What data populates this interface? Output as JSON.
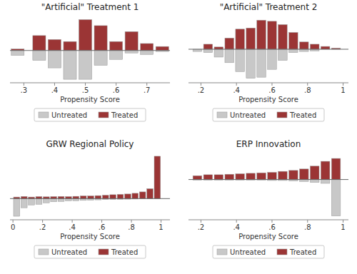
{
  "chart_data": [
    {
      "type": "bar",
      "title": "\"Artificial\" Treatment 1",
      "x_label": "Propensity Score",
      "x": [
        0.28,
        0.35,
        0.4,
        0.45,
        0.5,
        0.55,
        0.6,
        0.65,
        0.7,
        0.75
      ],
      "series": [
        {
          "name": "Untreated",
          "color": "#c8c8c8",
          "values": [
            -0.1,
            -0.2,
            -0.35,
            -0.58,
            -0.58,
            -0.3,
            -0.18,
            -0.05,
            -0.08,
            -0.02
          ]
        },
        {
          "name": "Treated",
          "color": "#9b3535",
          "values": [
            0.03,
            0.3,
            0.22,
            0.18,
            0.62,
            0.5,
            0.18,
            0.38,
            0.14,
            0.08
          ]
        }
      ],
      "xlim": [
        0.255,
        0.775
      ],
      "xticks": [
        {
          "value": 0.3,
          "label": ".3"
        },
        {
          "value": 0.4,
          "label": ".4"
        },
        {
          "value": 0.5,
          "label": ".5"
        },
        {
          "value": 0.6,
          "label": ".6"
        },
        {
          "value": 0.7,
          "label": ".7"
        }
      ],
      "ylim": [
        -0.65,
        0.7
      ],
      "yticks": [],
      "tick_labels": "x",
      "legend": "bottom"
    },
    {
      "type": "bar",
      "title": "\"Artificial\" Treatment 2",
      "x_label": "Propensity Score",
      "x": [
        0.18,
        0.24,
        0.3,
        0.36,
        0.42,
        0.48,
        0.54,
        0.6,
        0.66,
        0.72,
        0.78,
        0.84,
        0.9,
        0.96
      ],
      "series": [
        {
          "name": "Untreated",
          "color": "#c8c8c8",
          "values": [
            -0.04,
            -0.06,
            -0.14,
            -0.24,
            -0.4,
            -0.52,
            -0.5,
            -0.36,
            -0.2,
            -0.06,
            -0.04,
            -0.03,
            0,
            0
          ]
        },
        {
          "name": "Treated",
          "color": "#9b3535",
          "values": [
            0,
            0.09,
            0.04,
            0.2,
            0.36,
            0.38,
            0.52,
            0.5,
            0.44,
            0.3,
            0.13,
            0.09,
            0.05,
            0.02
          ]
        }
      ],
      "xlim": [
        0.13,
        1.03
      ],
      "xticks": [
        {
          "value": 0.2,
          "label": ".2"
        },
        {
          "value": 0.4,
          "label": ".4"
        },
        {
          "value": 0.6,
          "label": ".6"
        },
        {
          "value": 0.8,
          "label": ".8"
        },
        1
      ],
      "ylim": [
        -0.6,
        0.6
      ],
      "yticks": [],
      "tick_labels": "x",
      "legend": "bottom"
    },
    {
      "type": "bar",
      "title": "GRW Regional Policy",
      "x_label": "Propensity Score",
      "x": [
        0.025,
        0.075,
        0.125,
        0.175,
        0.225,
        0.275,
        0.325,
        0.375,
        0.425,
        0.475,
        0.525,
        0.575,
        0.625,
        0.675,
        0.725,
        0.775,
        0.825,
        0.875,
        0.925,
        0.975
      ],
      "series": [
        {
          "name": "Untreated",
          "color": "#c8c8c8",
          "values": [
            -0.25,
            -0.13,
            -0.09,
            -0.08,
            -0.06,
            -0.045,
            -0.04,
            -0.032,
            -0.03,
            -0.025,
            -0.022,
            -0.018,
            -0.014,
            -0.012,
            -0.01,
            -0.008,
            -0.006,
            -0.004,
            -0.003,
            -0.002
          ]
        },
        {
          "name": "Treated",
          "color": "#9b3535",
          "values": [
            0.022,
            0.03,
            0.022,
            0.028,
            0.025,
            0.028,
            0.03,
            0.028,
            0.032,
            0.038,
            0.038,
            0.042,
            0.048,
            0.055,
            0.06,
            0.065,
            0.075,
            0.095,
            0.14,
            0.6
          ]
        }
      ],
      "xlim": [
        -0.02,
        1.06
      ],
      "xticks": [
        0,
        {
          "value": 0.2,
          "label": ".2"
        },
        {
          "value": 0.4,
          "label": ".4"
        },
        {
          "value": 0.6,
          "label": ".6"
        },
        {
          "value": 0.8,
          "label": ".8"
        },
        1
      ],
      "ylim": [
        -0.3,
        0.65
      ],
      "yticks": [],
      "tick_labels": "x",
      "legend": "bottom"
    },
    {
      "type": "bar",
      "title": "ERP Innovation",
      "x_label": "Propensity Score",
      "x": [
        0.18,
        0.24,
        0.3,
        0.36,
        0.42,
        0.48,
        0.54,
        0.6,
        0.66,
        0.72,
        0.78,
        0.84,
        0.9,
        0.96
      ],
      "series": [
        {
          "name": "Untreated",
          "color": "#c8c8c8",
          "values": [
            -0.005,
            -0.005,
            -0.005,
            -0.005,
            -0.005,
            -0.005,
            -0.005,
            -0.01,
            -0.01,
            -0.015,
            -0.02,
            -0.03,
            -0.04,
            -0.38
          ]
        },
        {
          "name": "Treated",
          "color": "#9b3535",
          "values": [
            0.04,
            0.05,
            0.05,
            0.055,
            0.06,
            0.065,
            0.07,
            0.075,
            0.085,
            0.095,
            0.11,
            0.14,
            0.19,
            0.22
          ]
        }
      ],
      "xlim": [
        0.13,
        1.03
      ],
      "xticks": [
        {
          "value": 0.2,
          "label": ".2"
        },
        {
          "value": 0.4,
          "label": ".4"
        },
        {
          "value": 0.6,
          "label": ".6"
        },
        {
          "value": 0.8,
          "label": ".8"
        },
        1
      ],
      "ylim": [
        -0.42,
        0.28
      ],
      "yticks": [],
      "tick_labels": "x",
      "legend": "bottom"
    }
  ]
}
